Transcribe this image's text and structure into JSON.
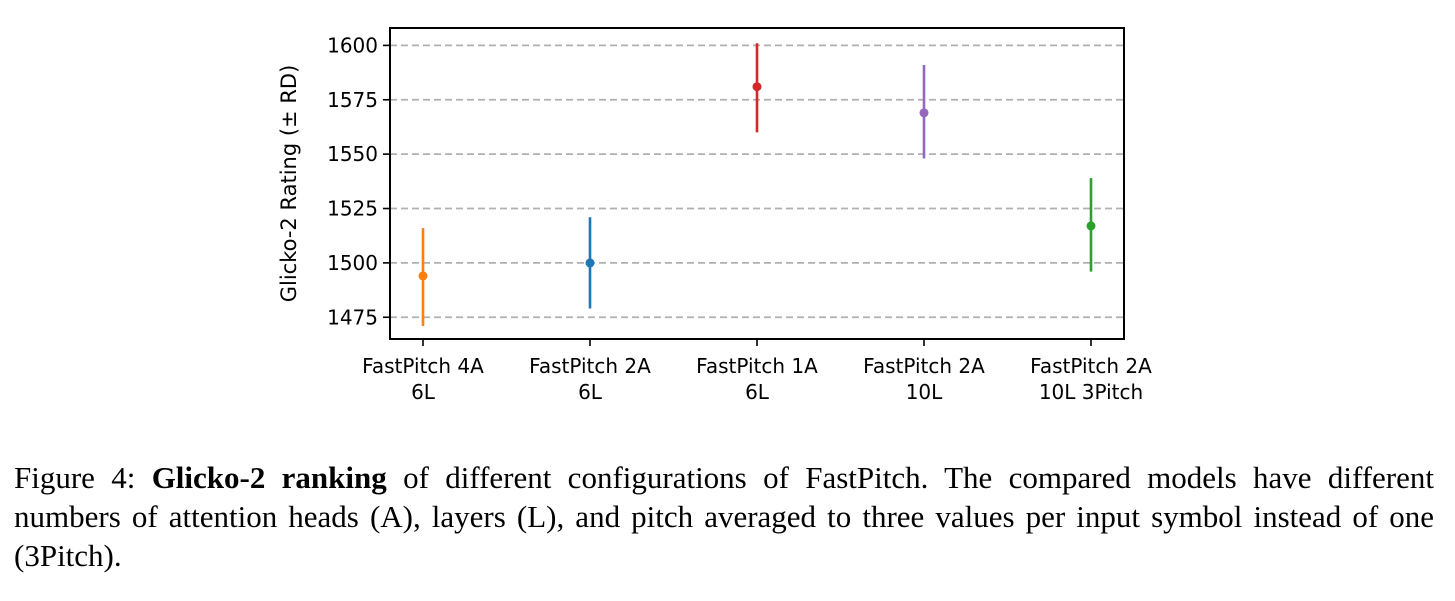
{
  "chart_data": {
    "type": "errorbar",
    "ylabel": "Glicko-2 Rating (± RD)",
    "ylim": [
      1465,
      1608
    ],
    "yticks": [
      1475,
      1500,
      1525,
      1550,
      1575,
      1600
    ],
    "grid": "horizontal dashed",
    "categories": [
      [
        "FastPitch 4A",
        "6L"
      ],
      [
        "FastPitch 2A",
        "6L"
      ],
      [
        "FastPitch 1A",
        "6L"
      ],
      [
        "FastPitch 2A",
        "10L"
      ],
      [
        "FastPitch 2A",
        "10L 3Pitch"
      ]
    ],
    "points": [
      {
        "value": 1494,
        "low": 1471,
        "high": 1516,
        "color": "#ff7f0e"
      },
      {
        "value": 1500,
        "low": 1479,
        "high": 1521,
        "color": "#1f77b4"
      },
      {
        "value": 1581,
        "low": 1560,
        "high": 1601,
        "color": "#d62728"
      },
      {
        "value": 1569,
        "low": 1548,
        "high": 1591,
        "color": "#9467bd"
      },
      {
        "value": 1517,
        "low": 1496,
        "high": 1539,
        "color": "#2ca02c"
      }
    ]
  },
  "caption": {
    "prefix": "Figure 4: ",
    "bold": "Glicko-2 ranking",
    "text": " of different configurations of FastPitch.  The compared models have different numbers of attention heads (A), layers (L), and pitch averaged to three values per input symbol instead of one (3Pitch)."
  }
}
